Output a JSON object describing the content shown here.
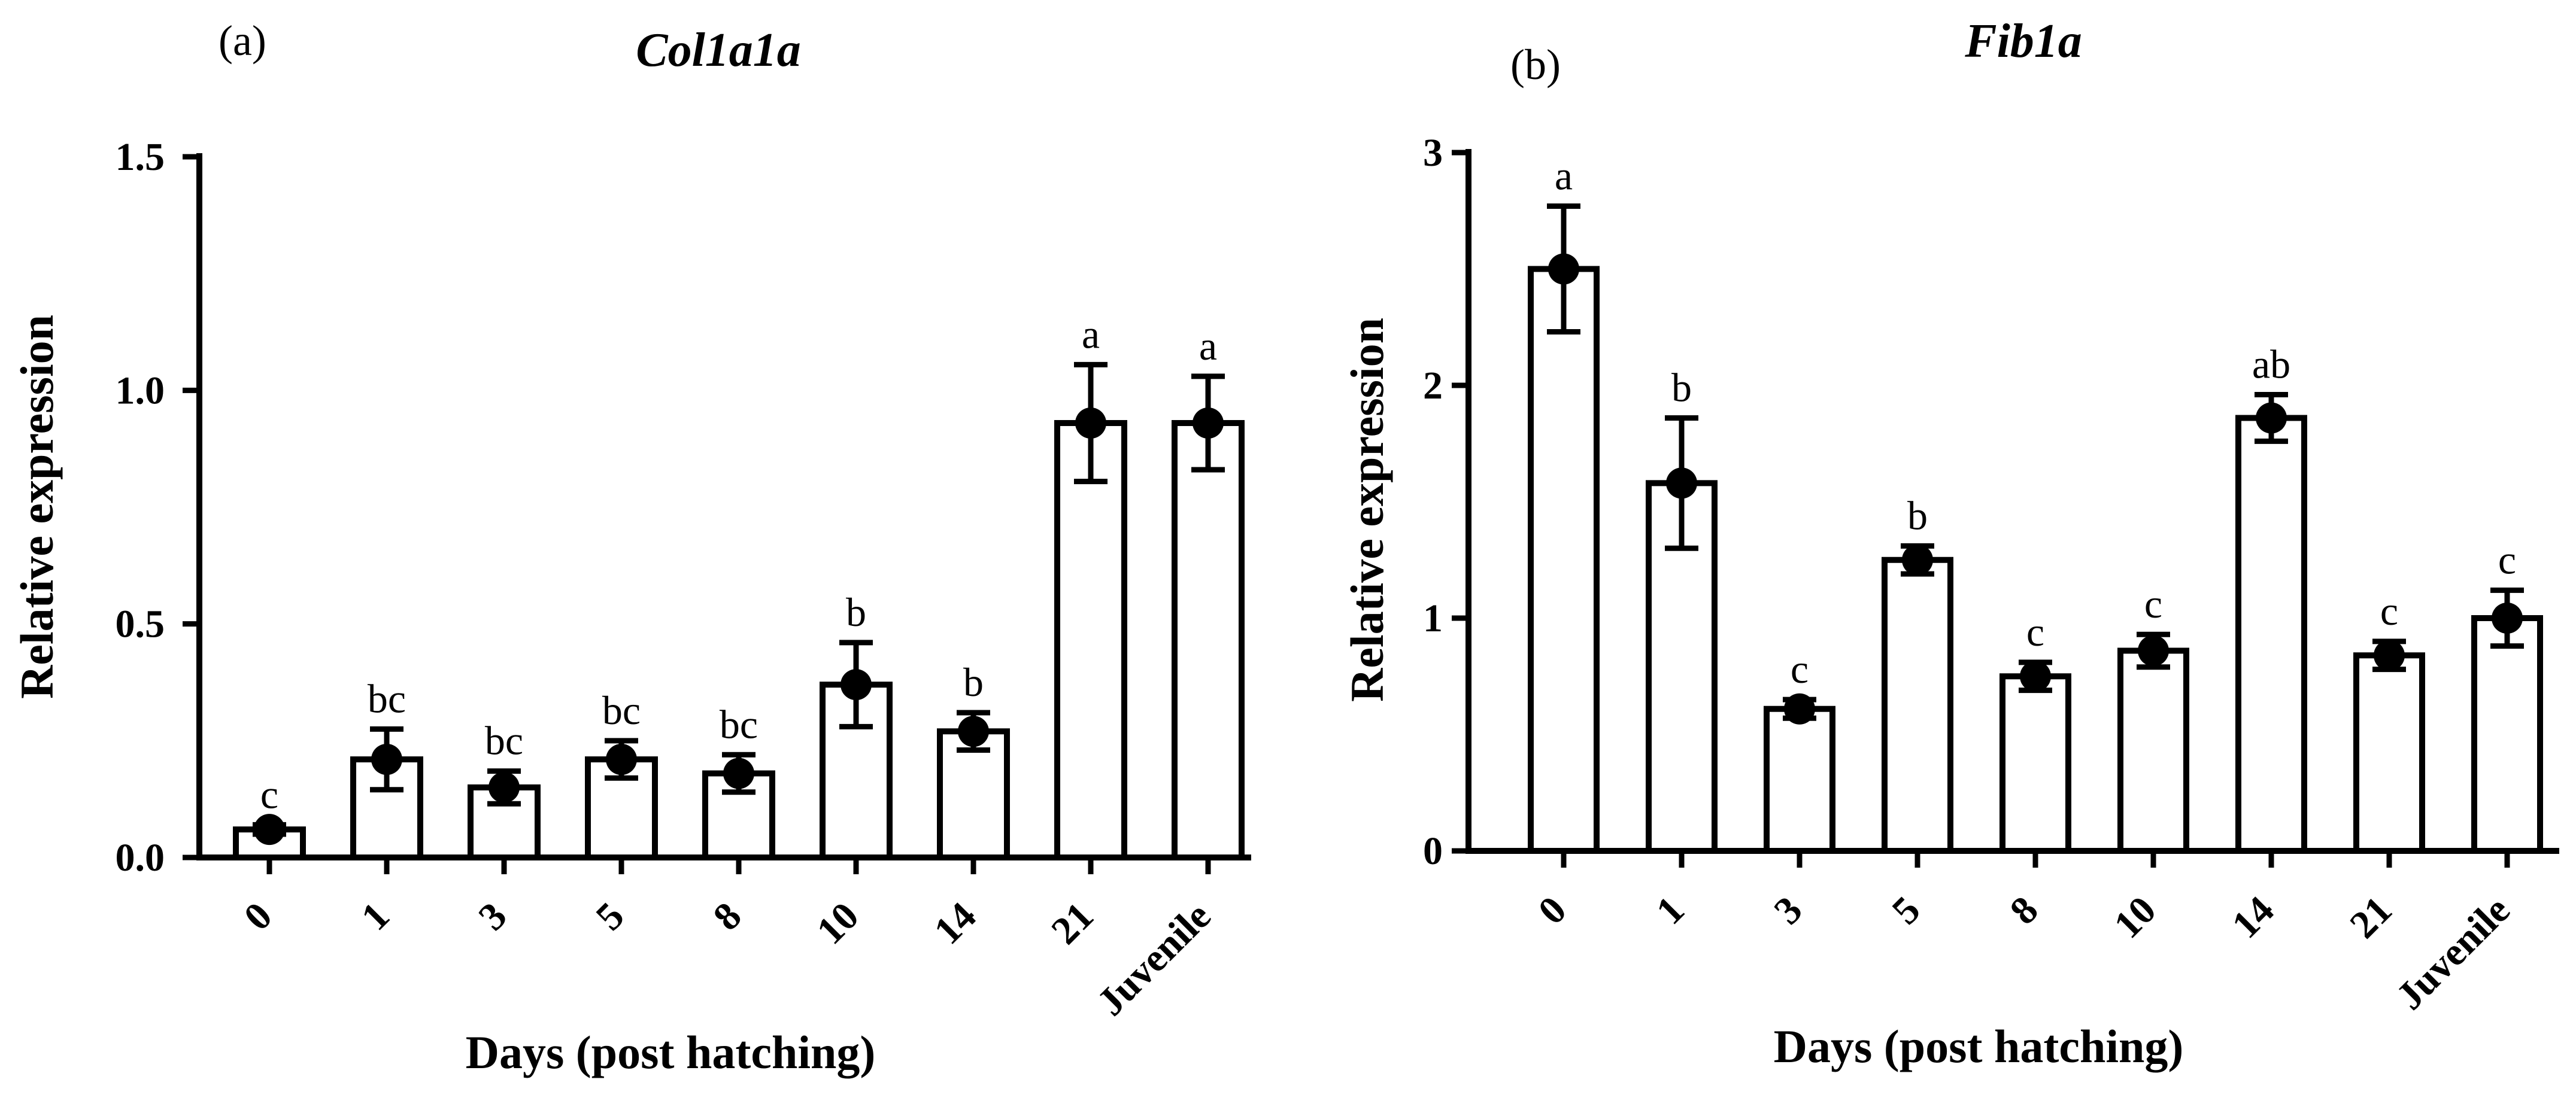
{
  "chart_data": [
    {
      "panel": "(a)",
      "type": "bar",
      "title": "Col1a1a",
      "xlabel": "Days (post hatching)",
      "ylabel": "Relative expression",
      "ylim": [
        0,
        1.5
      ],
      "yticks": [
        0,
        0.5,
        1.0,
        1.5
      ],
      "ytick_labels": [
        "0.0",
        "0.5",
        "1.0",
        "1.5"
      ],
      "categories": [
        "0",
        "1",
        "3",
        "5",
        "8",
        "10",
        "14",
        "21",
        "Juvenile"
      ],
      "values": [
        0.06,
        0.21,
        0.15,
        0.21,
        0.18,
        0.37,
        0.27,
        0.93,
        0.93
      ],
      "error": [
        0.01,
        0.065,
        0.035,
        0.04,
        0.04,
        0.09,
        0.04,
        0.125,
        0.1
      ],
      "significance": [
        "c",
        "bc",
        "bc",
        "bc",
        "bc",
        "b",
        "b",
        "a",
        "a"
      ]
    },
    {
      "panel": "(b)",
      "type": "bar",
      "title": "Fib1a",
      "xlabel": "Days (post hatching)",
      "ylabel": "Relative expression",
      "ylim": [
        0,
        3
      ],
      "yticks": [
        0,
        1,
        2,
        3
      ],
      "ytick_labels": [
        "0",
        "1",
        "2",
        "3"
      ],
      "categories": [
        "0",
        "1",
        "3",
        "5",
        "8",
        "10",
        "14",
        "21",
        "Juvenile"
      ],
      "values": [
        2.5,
        1.58,
        0.61,
        1.25,
        0.75,
        0.86,
        1.86,
        0.84,
        1.0
      ],
      "error": [
        0.27,
        0.28,
        0.04,
        0.06,
        0.06,
        0.07,
        0.1,
        0.06,
        0.12
      ],
      "significance": [
        "a",
        "b",
        "c",
        "b",
        "c",
        "c",
        "ab",
        "c",
        "c"
      ]
    }
  ]
}
